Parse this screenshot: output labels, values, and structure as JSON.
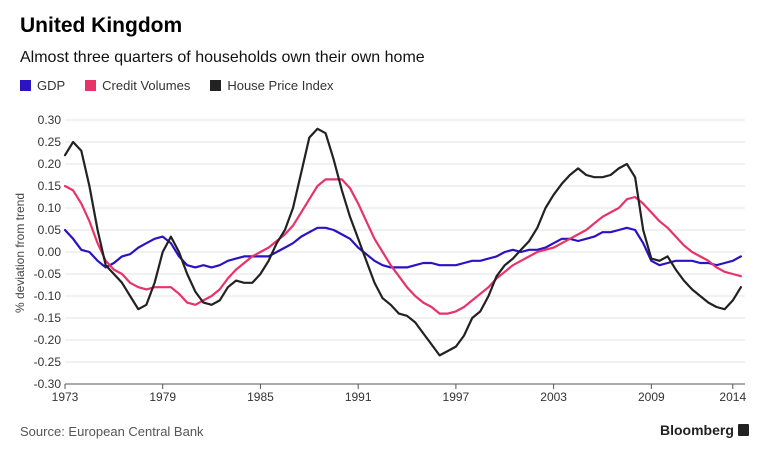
{
  "header": {
    "title": "United Kingdom",
    "subtitle": "Almost three quarters of households own their own home"
  },
  "legend": [
    {
      "label": "GDP",
      "color": "#2b12c4"
    },
    {
      "label": "Credit Volumes",
      "color": "#e8336a"
    },
    {
      "label": "House Price Index",
      "color": "#222222"
    }
  ],
  "footer": {
    "source": "Source: European Central Bank",
    "brand": "Bloomberg",
    "brand_icon": "bloomberg-terminal-icon"
  },
  "chart_data": {
    "type": "line",
    "ylabel": "% deviation from trend",
    "xlim": [
      1973,
      2014.75
    ],
    "ylim": [
      -0.3,
      0.3
    ],
    "yticks": [
      0.3,
      0.25,
      0.2,
      0.15,
      0.1,
      0.05,
      0.0,
      -0.05,
      -0.1,
      -0.15,
      -0.2,
      -0.25,
      -0.3
    ],
    "ytick_labels": [
      "0.30",
      "0.25",
      "0.20",
      "0.15",
      "0.10",
      "0.05",
      "0.00",
      "-0.05",
      "-0.10",
      "-0.15",
      "-0.20",
      "-0.25",
      "-0.30"
    ],
    "xticks": [
      1973,
      1979,
      1985,
      1991,
      1997,
      2003,
      2009,
      2014
    ],
    "xtick_labels": [
      "1973",
      "1979",
      "1985",
      "1991",
      "1997",
      "2003",
      "2009",
      "2014"
    ],
    "grid": "horizontal",
    "legend_position": "top-left",
    "series": [
      {
        "name": "GDP",
        "color": "#2b12c4",
        "x": [
          1973,
          1973.5,
          1974,
          1974.5,
          1975,
          1975.5,
          1976,
          1976.5,
          1977,
          1977.5,
          1978,
          1978.5,
          1979,
          1979.5,
          1980,
          1980.5,
          1981,
          1981.5,
          1982,
          1982.5,
          1983,
          1983.5,
          1984,
          1984.5,
          1985,
          1985.5,
          1986,
          1986.5,
          1987,
          1987.5,
          1988,
          1988.5,
          1989,
          1989.5,
          1990,
          1990.5,
          1991,
          1991.5,
          1992,
          1992.5,
          1993,
          1993.5,
          1994,
          1994.5,
          1995,
          1995.5,
          1996,
          1996.5,
          1997,
          1997.5,
          1998,
          1998.5,
          1999,
          1999.5,
          2000,
          2000.5,
          2001,
          2001.5,
          2002,
          2002.5,
          2003,
          2003.5,
          2004,
          2004.5,
          2005,
          2005.5,
          2006,
          2006.5,
          2007,
          2007.5,
          2008,
          2008.5,
          2009,
          2009.5,
          2010,
          2010.5,
          2011,
          2011.5,
          2012,
          2012.5,
          2013,
          2013.5,
          2014,
          2014.5
        ],
        "values": [
          0.05,
          0.03,
          0.005,
          0.0,
          -0.02,
          -0.035,
          -0.025,
          -0.01,
          -0.005,
          0.01,
          0.02,
          0.03,
          0.035,
          0.02,
          -0.01,
          -0.03,
          -0.035,
          -0.03,
          -0.035,
          -0.03,
          -0.02,
          -0.015,
          -0.01,
          -0.01,
          -0.01,
          -0.01,
          0.0,
          0.01,
          0.02,
          0.035,
          0.045,
          0.055,
          0.055,
          0.05,
          0.04,
          0.03,
          0.01,
          -0.005,
          -0.02,
          -0.03,
          -0.035,
          -0.035,
          -0.035,
          -0.03,
          -0.025,
          -0.025,
          -0.03,
          -0.03,
          -0.03,
          -0.025,
          -0.02,
          -0.02,
          -0.015,
          -0.01,
          0.0,
          0.005,
          0.0,
          0.005,
          0.005,
          0.01,
          0.02,
          0.03,
          0.03,
          0.025,
          0.03,
          0.035,
          0.045,
          0.045,
          0.05,
          0.055,
          0.05,
          0.02,
          -0.02,
          -0.03,
          -0.025,
          -0.02,
          -0.02,
          -0.02,
          -0.025,
          -0.025,
          -0.03,
          -0.025,
          -0.02,
          -0.01
        ]
      },
      {
        "name": "Credit Volumes",
        "color": "#e8336a",
        "x": [
          1973,
          1973.5,
          1974,
          1974.5,
          1975,
          1975.5,
          1976,
          1976.5,
          1977,
          1977.5,
          1978,
          1978.5,
          1979,
          1979.5,
          1980,
          1980.5,
          1981,
          1981.5,
          1982,
          1982.5,
          1983,
          1983.5,
          1984,
          1984.5,
          1985,
          1985.5,
          1986,
          1986.5,
          1987,
          1987.5,
          1988,
          1988.5,
          1989,
          1989.5,
          1990,
          1990.5,
          1991,
          1991.5,
          1992,
          1992.5,
          1993,
          1993.5,
          1994,
          1994.5,
          1995,
          1995.5,
          1996,
          1996.5,
          1997,
          1997.5,
          1998,
          1998.5,
          1999,
          1999.5,
          2000,
          2000.5,
          2001,
          2001.5,
          2002,
          2002.5,
          2003,
          2003.5,
          2004,
          2004.5,
          2005,
          2005.5,
          2006,
          2006.5,
          2007,
          2007.5,
          2008,
          2008.5,
          2009,
          2009.5,
          2010,
          2010.5,
          2011,
          2011.5,
          2012,
          2012.5,
          2013,
          2013.5,
          2014,
          2014.5
        ],
        "values": [
          0.15,
          0.14,
          0.11,
          0.07,
          0.02,
          -0.02,
          -0.04,
          -0.05,
          -0.07,
          -0.08,
          -0.085,
          -0.08,
          -0.08,
          -0.08,
          -0.095,
          -0.115,
          -0.12,
          -0.11,
          -0.1,
          -0.085,
          -0.06,
          -0.04,
          -0.025,
          -0.01,
          0.0,
          0.01,
          0.025,
          0.04,
          0.06,
          0.09,
          0.12,
          0.15,
          0.165,
          0.165,
          0.165,
          0.145,
          0.11,
          0.07,
          0.03,
          0.0,
          -0.03,
          -0.055,
          -0.08,
          -0.1,
          -0.115,
          -0.125,
          -0.14,
          -0.14,
          -0.135,
          -0.125,
          -0.11,
          -0.095,
          -0.08,
          -0.06,
          -0.045,
          -0.03,
          -0.02,
          -0.01,
          0.0,
          0.005,
          0.01,
          0.02,
          0.03,
          0.04,
          0.05,
          0.065,
          0.08,
          0.09,
          0.1,
          0.12,
          0.125,
          0.11,
          0.09,
          0.07,
          0.055,
          0.035,
          0.015,
          0.0,
          -0.01,
          -0.02,
          -0.035,
          -0.045,
          -0.05,
          -0.055
        ]
      },
      {
        "name": "House Price Index",
        "color": "#222222",
        "x": [
          1973,
          1973.5,
          1974,
          1974.5,
          1975,
          1975.5,
          1976,
          1976.5,
          1977,
          1977.5,
          1978,
          1978.5,
          1979,
          1979.5,
          1980,
          1980.5,
          1981,
          1981.5,
          1982,
          1982.5,
          1983,
          1983.5,
          1984,
          1984.5,
          1985,
          1985.5,
          1986,
          1986.5,
          1987,
          1987.5,
          1988,
          1988.5,
          1989,
          1989.5,
          1990,
          1990.5,
          1991,
          1991.5,
          1992,
          1992.5,
          1993,
          1993.5,
          1994,
          1994.5,
          1995,
          1995.5,
          1996,
          1996.5,
          1997,
          1997.5,
          1998,
          1998.5,
          1999,
          1999.5,
          2000,
          2000.5,
          2001,
          2001.5,
          2002,
          2002.5,
          2003,
          2003.5,
          2004,
          2004.5,
          2005,
          2005.5,
          2006,
          2006.5,
          2007,
          2007.5,
          2008,
          2008.5,
          2009,
          2009.5,
          2010,
          2010.5,
          2011,
          2011.5,
          2012,
          2012.5,
          2013,
          2013.5,
          2014,
          2014.5
        ],
        "values": [
          0.22,
          0.25,
          0.23,
          0.15,
          0.05,
          -0.03,
          -0.05,
          -0.07,
          -0.1,
          -0.13,
          -0.12,
          -0.07,
          0.0,
          0.035,
          0.0,
          -0.05,
          -0.09,
          -0.115,
          -0.12,
          -0.11,
          -0.08,
          -0.065,
          -0.07,
          -0.07,
          -0.05,
          -0.02,
          0.02,
          0.05,
          0.1,
          0.18,
          0.26,
          0.28,
          0.27,
          0.21,
          0.14,
          0.08,
          0.03,
          -0.02,
          -0.07,
          -0.105,
          -0.12,
          -0.14,
          -0.145,
          -0.16,
          -0.185,
          -0.21,
          -0.235,
          -0.225,
          -0.215,
          -0.19,
          -0.15,
          -0.135,
          -0.1,
          -0.055,
          -0.03,
          -0.015,
          0.005,
          0.025,
          0.055,
          0.1,
          0.13,
          0.155,
          0.175,
          0.19,
          0.175,
          0.17,
          0.17,
          0.175,
          0.19,
          0.2,
          0.17,
          0.05,
          -0.015,
          -0.02,
          -0.01,
          -0.04,
          -0.065,
          -0.085,
          -0.1,
          -0.115,
          -0.125,
          -0.13,
          -0.11,
          -0.08
        ]
      }
    ]
  }
}
